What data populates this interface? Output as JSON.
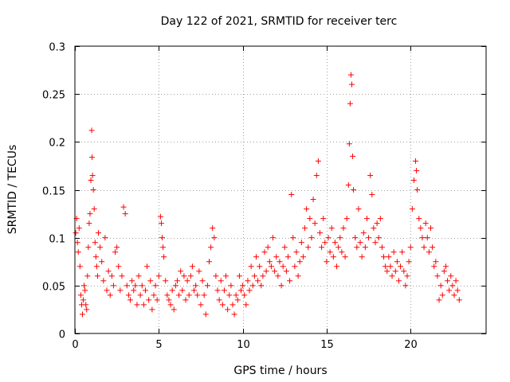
{
  "chart_data": {
    "type": "scatter",
    "title": "Day 122 of 2021, SRMTID for receiver terc",
    "xlabel": "GPS time / hours",
    "ylabel": "SRMTID / TECUs",
    "xlim": [
      0,
      24.5
    ],
    "ylim": [
      0,
      0.3
    ],
    "xticks": [
      0,
      5,
      10,
      15,
      20
    ],
    "xtick_labels": [
      "0",
      "5",
      "10",
      "15",
      "20"
    ],
    "yticks": [
      0,
      0.05,
      0.1,
      0.15,
      0.2,
      0.25,
      0.3
    ],
    "ytick_labels": [
      "0",
      "0.05",
      "0.1",
      "0.15",
      "0.2",
      "0.25",
      "0.3"
    ],
    "grid": true,
    "marker": "+",
    "color": "#ff0000",
    "series": [
      {
        "name": "SRMTID",
        "points": [
          [
            0.05,
            0.105
          ],
          [
            0.1,
            0.12
          ],
          [
            0.15,
            0.095
          ],
          [
            0.2,
            0.085
          ],
          [
            0.25,
            0.11
          ],
          [
            0.3,
            0.07
          ],
          [
            0.35,
            0.04
          ],
          [
            0.4,
            0.03
          ],
          [
            0.45,
            0.02
          ],
          [
            0.5,
            0.035
          ],
          [
            0.55,
            0.05
          ],
          [
            0.6,
            0.045
          ],
          [
            0.65,
            0.03
          ],
          [
            0.7,
            0.025
          ],
          [
            0.75,
            0.06
          ],
          [
            0.8,
            0.09
          ],
          [
            0.85,
            0.115
          ],
          [
            0.9,
            0.125
          ],
          [
            0.95,
            0.16
          ],
          [
            1.0,
            0.212
          ],
          [
            1.02,
            0.184
          ],
          [
            1.05,
            0.165
          ],
          [
            1.1,
            0.15
          ],
          [
            1.15,
            0.13
          ],
          [
            1.2,
            0.095
          ],
          [
            1.25,
            0.08
          ],
          [
            1.3,
            0.07
          ],
          [
            1.35,
            0.06
          ],
          [
            1.4,
            0.105
          ],
          [
            1.5,
            0.09
          ],
          [
            1.6,
            0.075
          ],
          [
            1.7,
            0.055
          ],
          [
            1.8,
            0.1
          ],
          [
            1.9,
            0.045
          ],
          [
            2.0,
            0.065
          ],
          [
            2.1,
            0.04
          ],
          [
            2.2,
            0.06
          ],
          [
            2.3,
            0.05
          ],
          [
            2.4,
            0.085
          ],
          [
            2.5,
            0.09
          ],
          [
            2.6,
            0.07
          ],
          [
            2.7,
            0.045
          ],
          [
            2.8,
            0.06
          ],
          [
            2.9,
            0.132
          ],
          [
            3.0,
            0.125
          ],
          [
            3.1,
            0.05
          ],
          [
            3.2,
            0.04
          ],
          [
            3.3,
            0.035
          ],
          [
            3.4,
            0.055
          ],
          [
            3.5,
            0.045
          ],
          [
            3.6,
            0.05
          ],
          [
            3.7,
            0.03
          ],
          [
            3.8,
            0.06
          ],
          [
            3.9,
            0.04
          ],
          [
            4.0,
            0.05
          ],
          [
            4.1,
            0.03
          ],
          [
            4.2,
            0.045
          ],
          [
            4.3,
            0.07
          ],
          [
            4.4,
            0.035
          ],
          [
            4.5,
            0.055
          ],
          [
            4.6,
            0.025
          ],
          [
            4.7,
            0.04
          ],
          [
            4.8,
            0.05
          ],
          [
            4.9,
            0.035
          ],
          [
            5.0,
            0.06
          ],
          [
            5.1,
            0.122
          ],
          [
            5.15,
            0.115
          ],
          [
            5.2,
            0.1
          ],
          [
            5.25,
            0.09
          ],
          [
            5.3,
            0.08
          ],
          [
            5.4,
            0.055
          ],
          [
            5.5,
            0.04
          ],
          [
            5.6,
            0.035
          ],
          [
            5.7,
            0.03
          ],
          [
            5.8,
            0.045
          ],
          [
            5.9,
            0.025
          ],
          [
            6.0,
            0.05
          ],
          [
            6.1,
            0.055
          ],
          [
            6.2,
            0.04
          ],
          [
            6.3,
            0.065
          ],
          [
            6.4,
            0.045
          ],
          [
            6.5,
            0.06
          ],
          [
            6.6,
            0.035
          ],
          [
            6.7,
            0.055
          ],
          [
            6.8,
            0.04
          ],
          [
            6.9,
            0.06
          ],
          [
            7.0,
            0.07
          ],
          [
            7.1,
            0.045
          ],
          [
            7.2,
            0.05
          ],
          [
            7.3,
            0.04
          ],
          [
            7.4,
            0.065
          ],
          [
            7.5,
            0.03
          ],
          [
            7.6,
            0.055
          ],
          [
            7.7,
            0.04
          ],
          [
            7.8,
            0.02
          ],
          [
            7.9,
            0.05
          ],
          [
            8.0,
            0.075
          ],
          [
            8.1,
            0.09
          ],
          [
            8.2,
            0.11
          ],
          [
            8.3,
            0.1
          ],
          [
            8.4,
            0.06
          ],
          [
            8.5,
            0.045
          ],
          [
            8.6,
            0.035
          ],
          [
            8.7,
            0.055
          ],
          [
            8.8,
            0.03
          ],
          [
            8.9,
            0.045
          ],
          [
            9.0,
            0.06
          ],
          [
            9.1,
            0.025
          ],
          [
            9.2,
            0.04
          ],
          [
            9.3,
            0.05
          ],
          [
            9.4,
            0.03
          ],
          [
            9.5,
            0.02
          ],
          [
            9.6,
            0.04
          ],
          [
            9.7,
            0.035
          ],
          [
            9.8,
            0.06
          ],
          [
            9.9,
            0.045
          ],
          [
            10.0,
            0.05
          ],
          [
            10.1,
            0.04
          ],
          [
            10.2,
            0.03
          ],
          [
            10.3,
            0.055
          ],
          [
            10.4,
            0.045
          ],
          [
            10.5,
            0.07
          ],
          [
            10.6,
            0.05
          ],
          [
            10.7,
            0.06
          ],
          [
            10.8,
            0.08
          ],
          [
            10.9,
            0.055
          ],
          [
            11.0,
            0.07
          ],
          [
            11.1,
            0.05
          ],
          [
            11.2,
            0.06
          ],
          [
            11.3,
            0.085
          ],
          [
            11.4,
            0.065
          ],
          [
            11.5,
            0.09
          ],
          [
            11.6,
            0.075
          ],
          [
            11.7,
            0.07
          ],
          [
            11.8,
            0.1
          ],
          [
            11.9,
            0.065
          ],
          [
            12.0,
            0.08
          ],
          [
            12.1,
            0.06
          ],
          [
            12.2,
            0.075
          ],
          [
            12.3,
            0.05
          ],
          [
            12.4,
            0.07
          ],
          [
            12.5,
            0.09
          ],
          [
            12.6,
            0.065
          ],
          [
            12.7,
            0.08
          ],
          [
            12.8,
            0.055
          ],
          [
            12.9,
            0.145
          ],
          [
            13.0,
            0.1
          ],
          [
            13.1,
            0.07
          ],
          [
            13.2,
            0.085
          ],
          [
            13.3,
            0.06
          ],
          [
            13.4,
            0.075
          ],
          [
            13.5,
            0.095
          ],
          [
            13.6,
            0.08
          ],
          [
            13.7,
            0.11
          ],
          [
            13.8,
            0.13
          ],
          [
            13.9,
            0.09
          ],
          [
            14.0,
            0.12
          ],
          [
            14.1,
            0.1
          ],
          [
            14.2,
            0.14
          ],
          [
            14.3,
            0.115
          ],
          [
            14.4,
            0.165
          ],
          [
            14.5,
            0.18
          ],
          [
            14.6,
            0.105
          ],
          [
            14.7,
            0.09
          ],
          [
            14.8,
            0.12
          ],
          [
            14.9,
            0.095
          ],
          [
            15.0,
            0.075
          ],
          [
            15.1,
            0.1
          ],
          [
            15.2,
            0.085
          ],
          [
            15.3,
            0.11
          ],
          [
            15.4,
            0.08
          ],
          [
            15.5,
            0.095
          ],
          [
            15.6,
            0.07
          ],
          [
            15.7,
            0.09
          ],
          [
            15.8,
            0.1
          ],
          [
            15.9,
            0.085
          ],
          [
            16.0,
            0.11
          ],
          [
            16.1,
            0.08
          ],
          [
            16.2,
            0.12
          ],
          [
            16.3,
            0.155
          ],
          [
            16.35,
            0.198
          ],
          [
            16.4,
            0.24
          ],
          [
            16.45,
            0.27
          ],
          [
            16.5,
            0.26
          ],
          [
            16.55,
            0.185
          ],
          [
            16.6,
            0.15
          ],
          [
            16.7,
            0.1
          ],
          [
            16.8,
            0.09
          ],
          [
            16.9,
            0.13
          ],
          [
            17.0,
            0.095
          ],
          [
            17.1,
            0.08
          ],
          [
            17.2,
            0.105
          ],
          [
            17.3,
            0.09
          ],
          [
            17.4,
            0.12
          ],
          [
            17.5,
            0.1
          ],
          [
            17.6,
            0.165
          ],
          [
            17.7,
            0.145
          ],
          [
            17.8,
            0.11
          ],
          [
            17.9,
            0.095
          ],
          [
            18.0,
            0.115
          ],
          [
            18.1,
            0.1
          ],
          [
            18.2,
            0.12
          ],
          [
            18.3,
            0.09
          ],
          [
            18.4,
            0.08
          ],
          [
            18.5,
            0.07
          ],
          [
            18.6,
            0.065
          ],
          [
            18.7,
            0.08
          ],
          [
            18.8,
            0.07
          ],
          [
            18.9,
            0.06
          ],
          [
            19.0,
            0.085
          ],
          [
            19.1,
            0.065
          ],
          [
            19.2,
            0.075
          ],
          [
            19.3,
            0.055
          ],
          [
            19.4,
            0.07
          ],
          [
            19.5,
            0.085
          ],
          [
            19.6,
            0.065
          ],
          [
            19.7,
            0.05
          ],
          [
            19.8,
            0.06
          ],
          [
            19.9,
            0.075
          ],
          [
            20.0,
            0.09
          ],
          [
            20.1,
            0.13
          ],
          [
            20.2,
            0.16
          ],
          [
            20.3,
            0.18
          ],
          [
            20.35,
            0.17
          ],
          [
            20.4,
            0.15
          ],
          [
            20.5,
            0.12
          ],
          [
            20.6,
            0.11
          ],
          [
            20.7,
            0.1
          ],
          [
            20.8,
            0.09
          ],
          [
            20.9,
            0.115
          ],
          [
            21.0,
            0.1
          ],
          [
            21.1,
            0.085
          ],
          [
            21.2,
            0.11
          ],
          [
            21.3,
            0.09
          ],
          [
            21.4,
            0.07
          ],
          [
            21.5,
            0.075
          ],
          [
            21.6,
            0.06
          ],
          [
            21.7,
            0.035
          ],
          [
            21.8,
            0.05
          ],
          [
            21.9,
            0.04
          ],
          [
            22.0,
            0.065
          ],
          [
            22.1,
            0.07
          ],
          [
            22.2,
            0.055
          ],
          [
            22.3,
            0.045
          ],
          [
            22.4,
            0.06
          ],
          [
            22.5,
            0.05
          ],
          [
            22.6,
            0.04
          ],
          [
            22.7,
            0.055
          ],
          [
            22.8,
            0.045
          ],
          [
            22.9,
            0.035
          ]
        ]
      }
    ]
  }
}
